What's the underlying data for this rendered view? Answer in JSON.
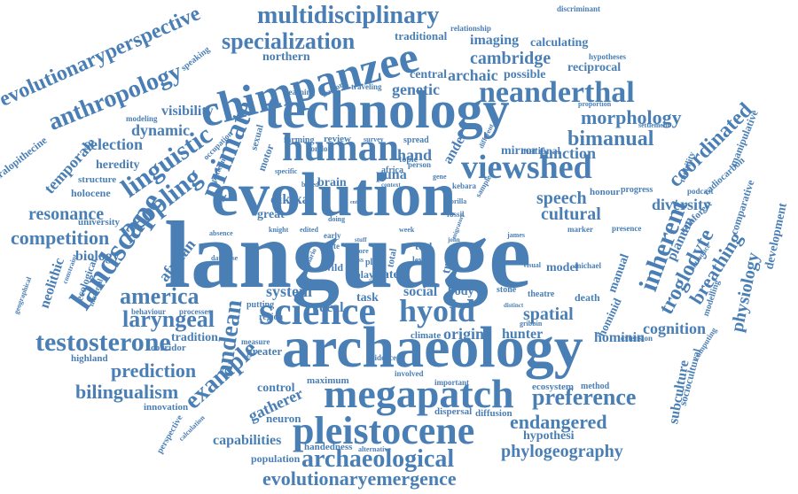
{
  "accent_color": "#4a7fb5",
  "words": [
    "language",
    "evolution",
    "archaeology",
    "technology",
    "chimpanzee",
    "megapatch",
    "pleistocene",
    "science",
    "viewshed",
    "human",
    "hyoid",
    "neanderthal",
    "multidisciplinary",
    "specialization",
    "anthropology",
    "evolutionaryperspective",
    "primate",
    "landscape",
    "linguistic",
    "peopling",
    "testosterone",
    "laryngeal",
    "andean",
    "america",
    "example",
    "competition",
    "resonance",
    "bilingualism",
    "prediction",
    "archaeological",
    "evolutionaryemergence",
    "preference",
    "endangered",
    "phylogeography",
    "capabilities",
    "gatherer",
    "coordinated",
    "inherent",
    "troglodyte",
    "breathing",
    "physiology",
    "morphology",
    "bimanual",
    "function",
    "cognition",
    "subculture",
    "sociocultural",
    "cultural",
    "speech",
    "spatial",
    "origin",
    "hunter",
    "hominin",
    "hominid",
    "system",
    "vocal",
    "social",
    "body",
    "task",
    "genetic",
    "cambridge",
    "archaic",
    "possible",
    "central",
    "reciprocal",
    "imaging",
    "calculating",
    "traditional",
    "northern",
    "visibility",
    "dynamic",
    "selection",
    "heredity",
    "structure",
    "holocene",
    "temporale",
    "australopithecine",
    "university",
    "biology",
    "african",
    "neolithic",
    "ecological",
    "highland",
    "corridor",
    "tradition",
    "innovation",
    "control",
    "neuron",
    "greater",
    "population",
    "handedness",
    "ecosystem",
    "maximum",
    "climate",
    "diffusion",
    "dispersal",
    "hypothesi",
    "diversity",
    "planum",
    "manual",
    "rainforest",
    "comparative",
    "development",
    "manipulative",
    "radiocarbon",
    "mobility",
    "honour",
    "progress",
    "mirror",
    "national",
    "dikika",
    "puna",
    "brain",
    "hand",
    "ande",
    "review",
    "farming",
    "spread",
    "topic",
    "africa",
    "great",
    "model",
    "death",
    "theatre",
    "stone",
    "play",
    "late",
    "tool",
    "level",
    "tract",
    "wild",
    "plan",
    "motor",
    "sexual",
    "evidence",
    "involved",
    "important",
    "method",
    "putting",
    "region",
    "measure",
    "processes",
    "behaviour",
    "extension",
    "marker",
    "presence",
    "podcast",
    "settlement",
    "proportion",
    "hypotheses",
    "discriminant",
    "relationship",
    "speaking",
    "modeling",
    "occupation",
    "pattern",
    "learning",
    "burford",
    "traveling",
    "london",
    "survey",
    "person",
    "different",
    "kebara",
    "specific",
    "based",
    "sample",
    "fossil",
    "week",
    "james",
    "john",
    "michael",
    "visual",
    "distinct",
    "gribbin",
    "computing",
    "modelling",
    "introduce",
    "alternative",
    "calculation",
    "perspective",
    "geographical",
    "database",
    "absence",
    "knight",
    "early",
    "state",
    "edited",
    "doing",
    "total",
    "context",
    "scenario",
    "entire",
    "more",
    "less",
    "stuff",
    "gorilla",
    "migratory",
    "gene",
    "material",
    "constraint"
  ]
}
